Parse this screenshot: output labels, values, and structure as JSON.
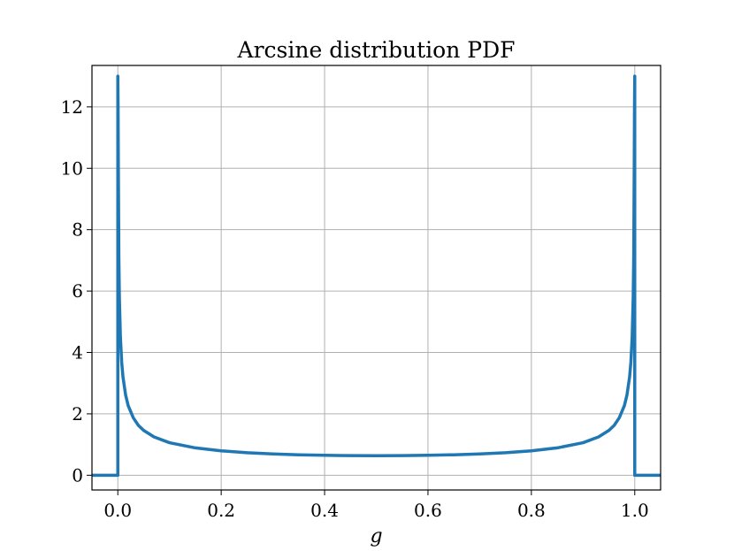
{
  "chart_data": {
    "type": "line",
    "title": "Arcsine distribution PDF",
    "xlabel": "g",
    "ylabel": "",
    "xlim": [
      -0.05,
      1.05
    ],
    "ylim": [
      -0.48,
      13.35
    ],
    "grid": true,
    "xticks": [
      0.0,
      0.2,
      0.4,
      0.6,
      0.8,
      1.0
    ],
    "xtick_labels": [
      "0.0",
      "0.2",
      "0.4",
      "0.6",
      "0.8",
      "1.0"
    ],
    "yticks": [
      0,
      2,
      4,
      6,
      8,
      10,
      12
    ],
    "ytick_labels": [
      "0",
      "2",
      "4",
      "6",
      "8",
      "10",
      "12"
    ],
    "series": [
      {
        "color": "#1f77b4",
        "x": [
          -0.05,
          0.0,
          0.0,
          0.0005,
          0.001,
          0.002,
          0.003,
          0.005,
          0.0075,
          0.01,
          0.015,
          0.02,
          0.03,
          0.04,
          0.05,
          0.07,
          0.1,
          0.15,
          0.2,
          0.25,
          0.3,
          0.35,
          0.4,
          0.45,
          0.5,
          0.55,
          0.6,
          0.65,
          0.7,
          0.75,
          0.8,
          0.85,
          0.9,
          0.93,
          0.95,
          0.96,
          0.97,
          0.98,
          0.985,
          0.99,
          0.9925,
          0.995,
          0.997,
          0.998,
          0.999,
          0.9995,
          1.0,
          1.0,
          1.05
        ],
        "y": [
          0,
          0,
          13.0,
          12.0,
          10.1,
          7.1,
          5.8,
          4.5,
          3.68,
          3.2,
          2.62,
          2.27,
          1.87,
          1.62,
          1.46,
          1.25,
          1.06,
          0.891,
          0.796,
          0.735,
          0.695,
          0.667,
          0.65,
          0.64,
          0.637,
          0.64,
          0.65,
          0.667,
          0.695,
          0.735,
          0.796,
          0.891,
          1.06,
          1.25,
          1.46,
          1.62,
          1.87,
          2.27,
          2.62,
          3.2,
          3.68,
          4.5,
          5.8,
          7.1,
          10.1,
          12.0,
          13.0,
          0,
          0
        ]
      }
    ]
  }
}
